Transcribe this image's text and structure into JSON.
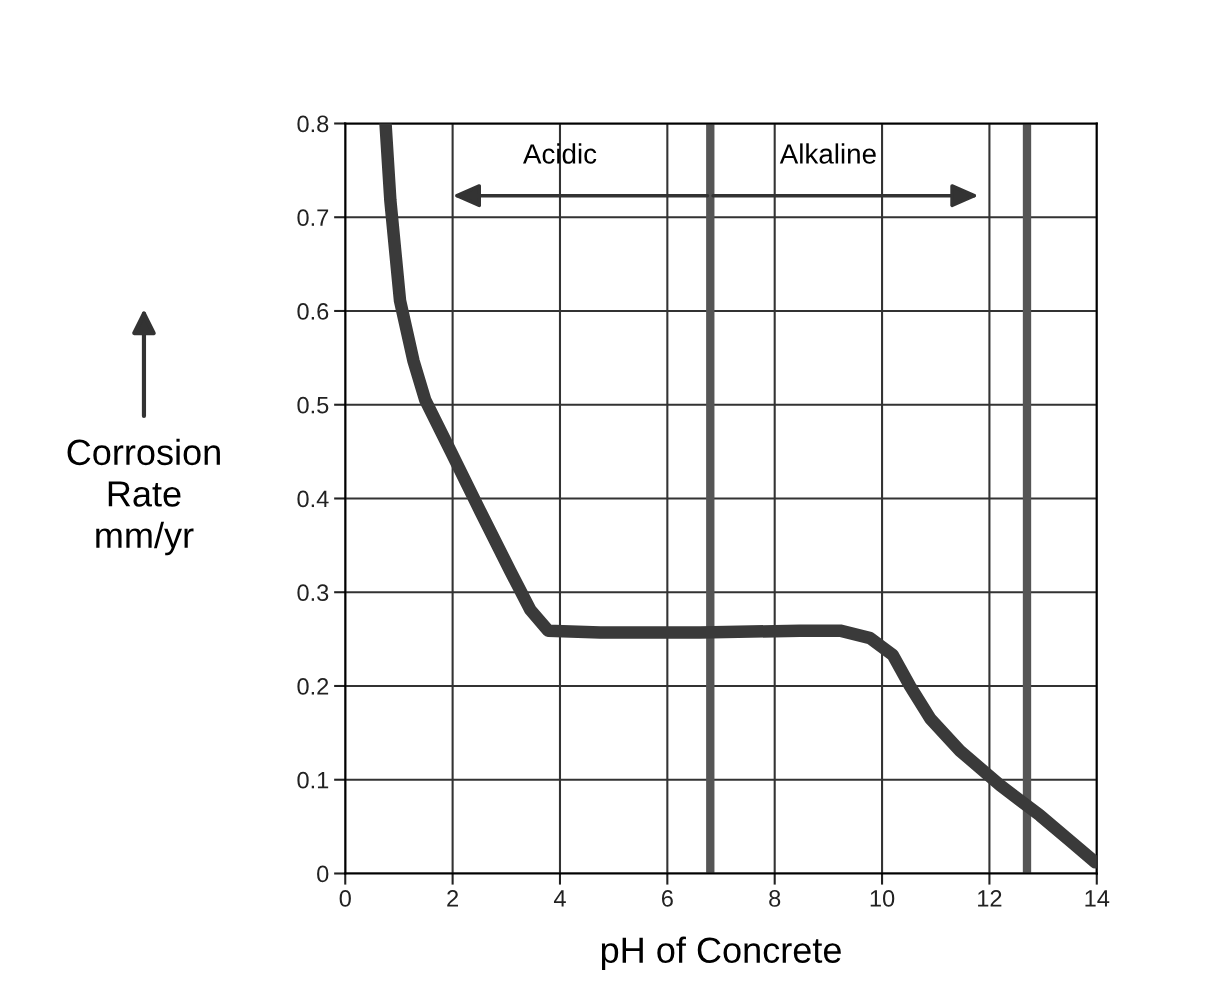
{
  "chart_data": {
    "type": "line",
    "xlabel": "pH of Concrete",
    "ylabel": "Corrosion\nRate\nmm/yr",
    "x": [
      0.75,
      0.84,
      1.02,
      1.27,
      1.49,
      1.96,
      2.51,
      3.07,
      3.45,
      3.78,
      4.75,
      6.61,
      8.47,
      9.22,
      9.78,
      10.2,
      10.52,
      10.9,
      11.45,
      12.2,
      12.94,
      13.5,
      13.97
    ],
    "series": [
      {
        "color": "#3a3a3a",
        "values": [
          0.8,
          0.718,
          0.611,
          0.547,
          0.505,
          0.451,
          0.387,
          0.323,
          0.281,
          0.259,
          0.257,
          0.257,
          0.259,
          0.259,
          0.251,
          0.233,
          0.2,
          0.165,
          0.131,
          0.094,
          0.062,
          0.035,
          0.012
        ]
      }
    ],
    "xlim": [
      0,
      14
    ],
    "ylim": [
      0,
      0.8
    ],
    "xticks": [
      0,
      2,
      4,
      6,
      8,
      10,
      12,
      14
    ],
    "yticks": [
      0,
      0.1,
      0.2,
      0.3,
      0.4,
      0.5,
      0.6,
      0.7,
      0.8
    ],
    "grid": true,
    "marker": "none",
    "line_style": "solid",
    "ref_lines": [
      {
        "axis": "x",
        "value": 6.8,
        "label": null,
        "color": "#555555"
      },
      {
        "axis": "x",
        "value": 12.7,
        "label": null,
        "color": "#555555"
      }
    ],
    "annotations": [
      "Acidic",
      "Alkaline"
    ]
  }
}
